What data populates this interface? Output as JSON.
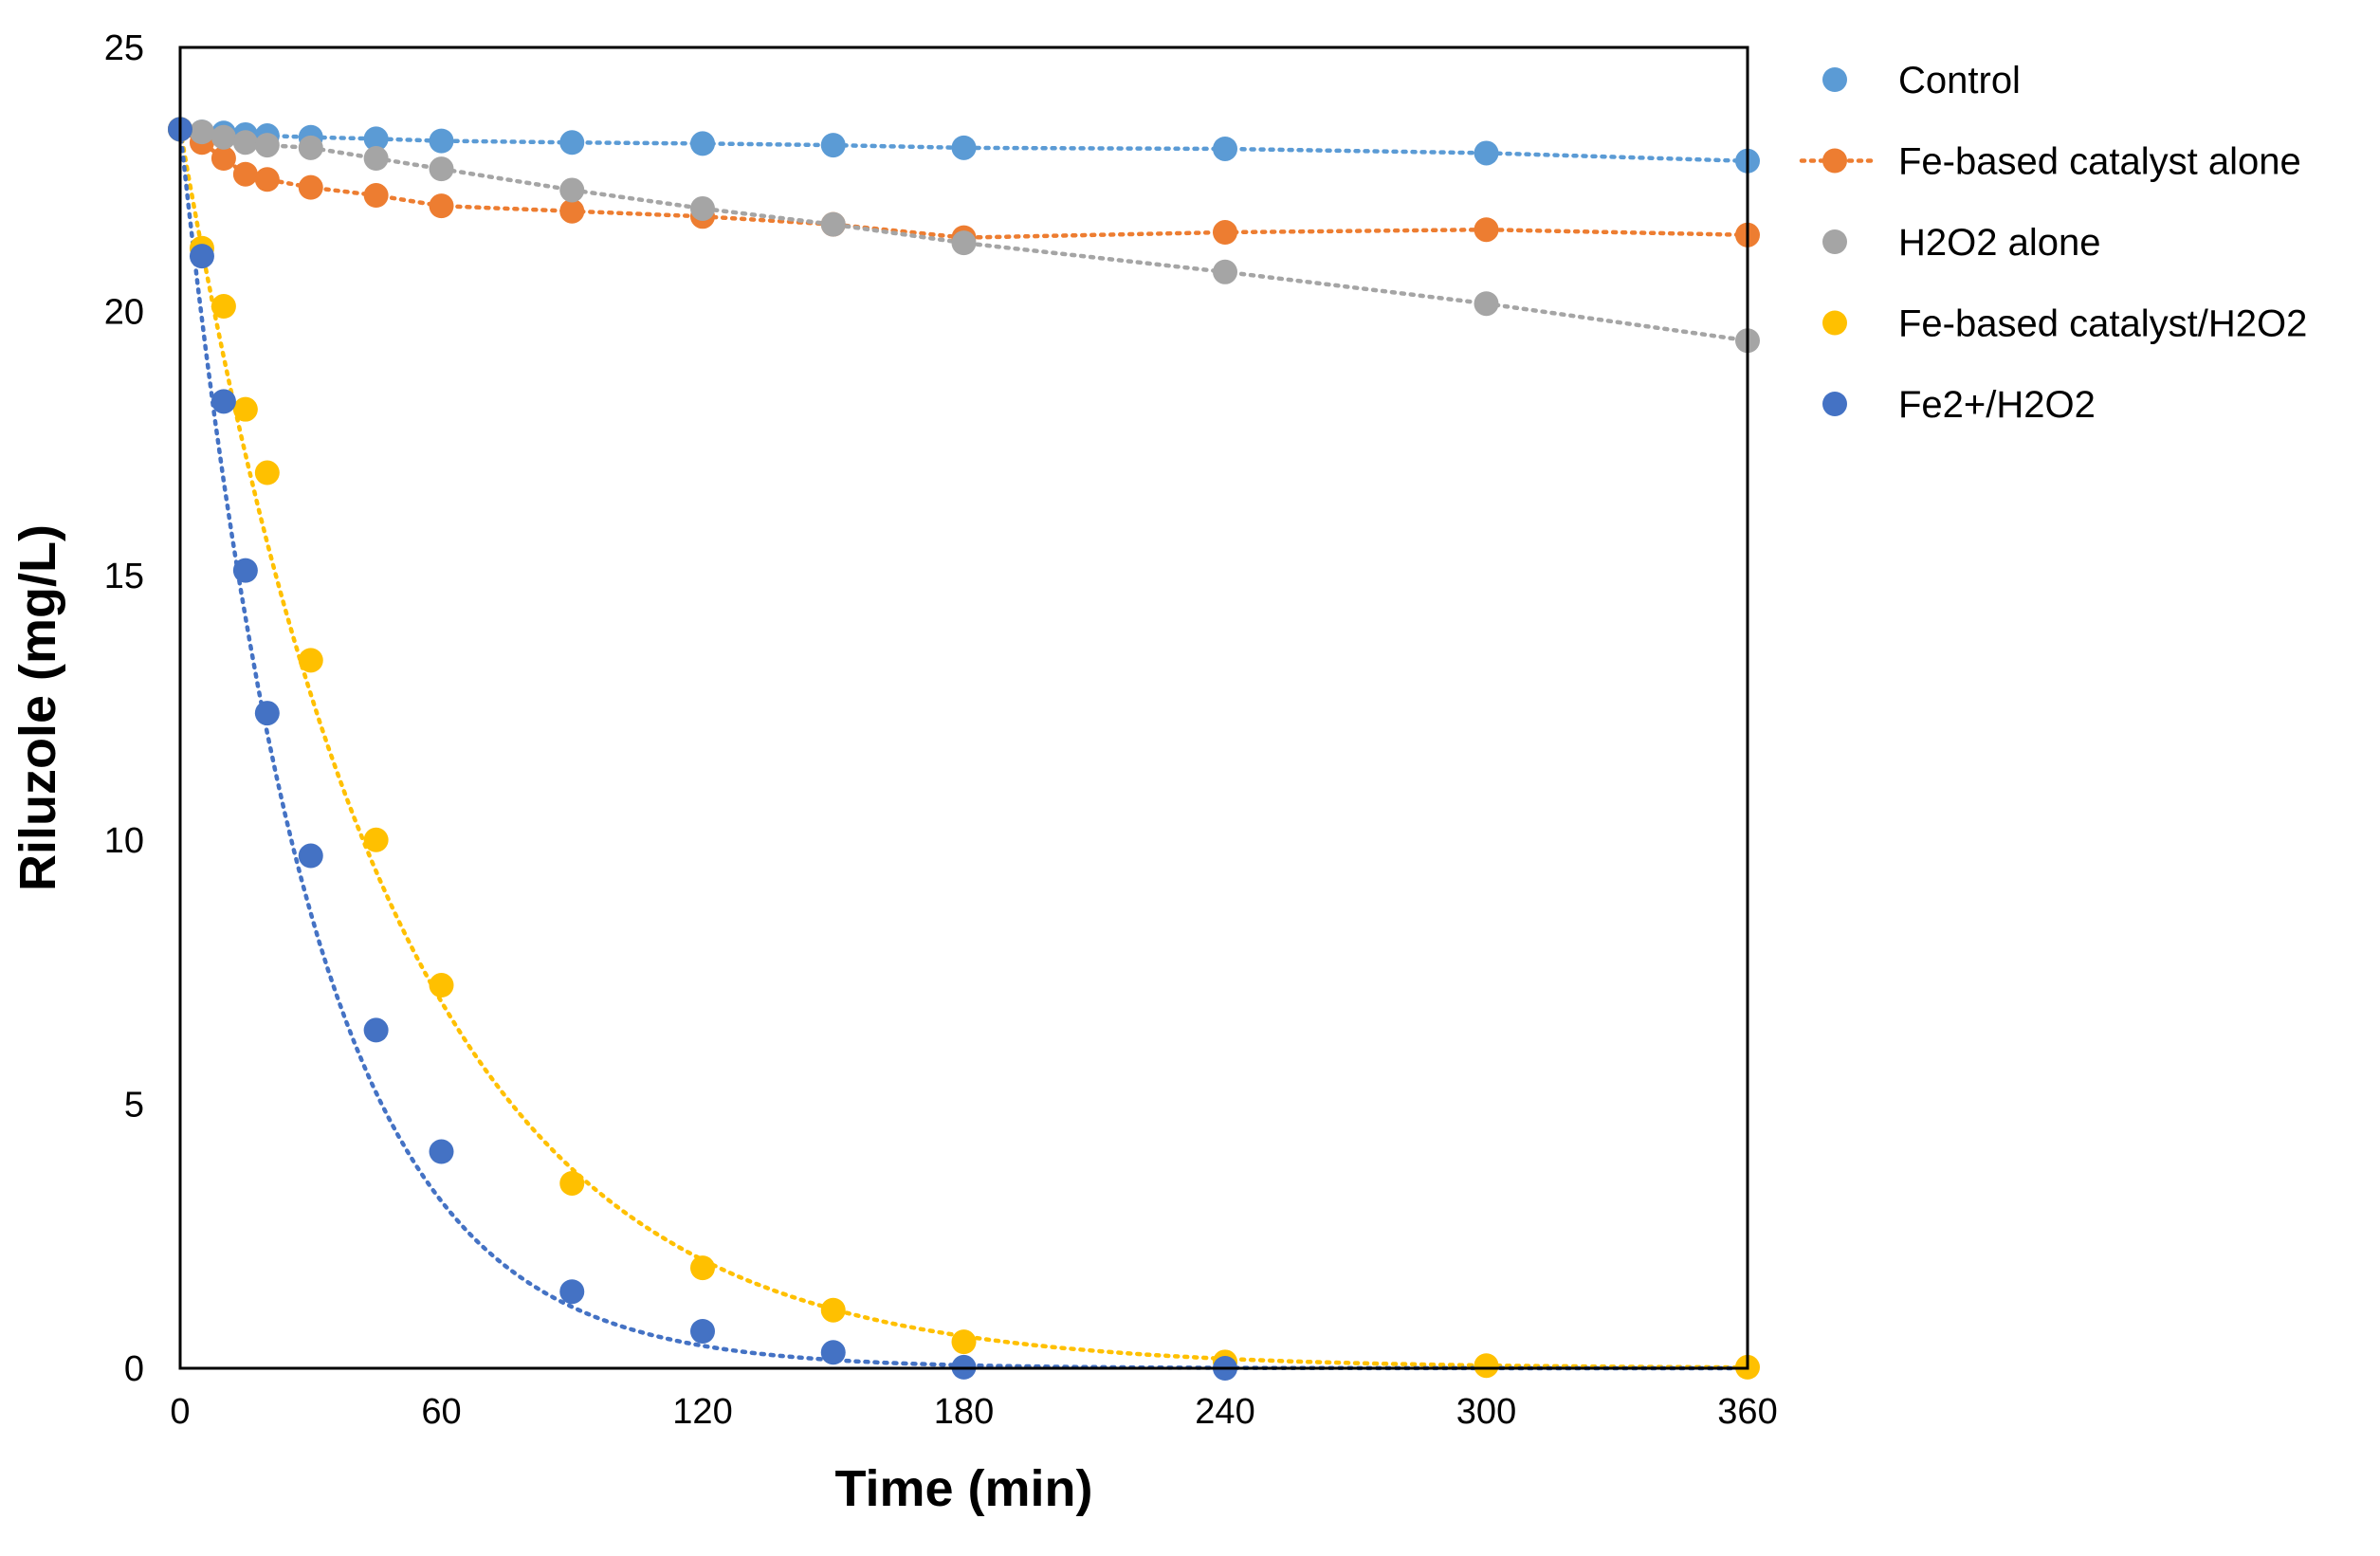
{
  "chart_data": {
    "type": "scatter",
    "title": "",
    "xlabel": "Time (min)",
    "ylabel": "Riluzole (mg/L)",
    "xlim": [
      0,
      360
    ],
    "ylim": [
      0,
      25
    ],
    "xticks": [
      0,
      60,
      120,
      180,
      240,
      300,
      360
    ],
    "yticks": [
      0,
      5,
      10,
      15,
      20,
      25
    ],
    "grid": false,
    "legend_position": "right",
    "series": [
      {
        "name": "Control",
        "color": "#5B9BD5",
        "trendline": "dotted",
        "x": [
          0,
          5,
          10,
          15,
          20,
          30,
          45,
          60,
          90,
          120,
          150,
          180,
          240,
          300,
          360
        ],
        "y": [
          23.45,
          23.4,
          23.38,
          23.35,
          23.33,
          23.3,
          23.27,
          23.23,
          23.2,
          23.18,
          23.15,
          23.1,
          23.08,
          23.0,
          22.85
        ]
      },
      {
        "name": "Fe-based catalyst alone",
        "color": "#ED7D31",
        "trendline": "dotted",
        "x": [
          0,
          5,
          10,
          15,
          20,
          30,
          45,
          60,
          90,
          120,
          150,
          180,
          240,
          300,
          360
        ],
        "y": [
          23.45,
          23.2,
          22.9,
          22.6,
          22.5,
          22.35,
          22.2,
          22.0,
          21.9,
          21.8,
          21.65,
          21.4,
          21.5,
          21.55,
          21.45
        ]
      },
      {
        "name": "H2O2 alone",
        "color": "#A5A5A5",
        "trendline": "dotted",
        "x": [
          0,
          5,
          10,
          15,
          20,
          30,
          45,
          60,
          90,
          120,
          150,
          180,
          240,
          300,
          360
        ],
        "y": [
          23.45,
          23.4,
          23.3,
          23.2,
          23.15,
          23.1,
          22.9,
          22.7,
          22.3,
          21.95,
          21.65,
          21.3,
          20.75,
          20.15,
          19.45
        ]
      },
      {
        "name": "Fe-based catalyst/H2O2",
        "color": "#FFC000",
        "trendline": "dotted",
        "trend_k": 0.0203,
        "x": [
          0,
          5,
          10,
          15,
          20,
          30,
          45,
          60,
          90,
          120,
          150,
          180,
          240,
          300,
          360
        ],
        "y": [
          23.45,
          21.2,
          20.1,
          18.15,
          16.95,
          13.4,
          10.0,
          7.25,
          3.5,
          1.9,
          1.1,
          0.5,
          0.12,
          0.05,
          0.02
        ]
      },
      {
        "name": "Fe2+/H2O2",
        "color": "#4472C4",
        "trendline": "dotted",
        "trend_k": 0.0334,
        "x": [
          0,
          5,
          10,
          15,
          20,
          30,
          45,
          60,
          90,
          120,
          150,
          180,
          240
        ],
        "y": [
          23.45,
          21.05,
          18.3,
          15.1,
          12.4,
          9.7,
          6.4,
          4.1,
          1.45,
          0.7,
          0.3,
          0.02,
          0.0
        ]
      }
    ]
  }
}
